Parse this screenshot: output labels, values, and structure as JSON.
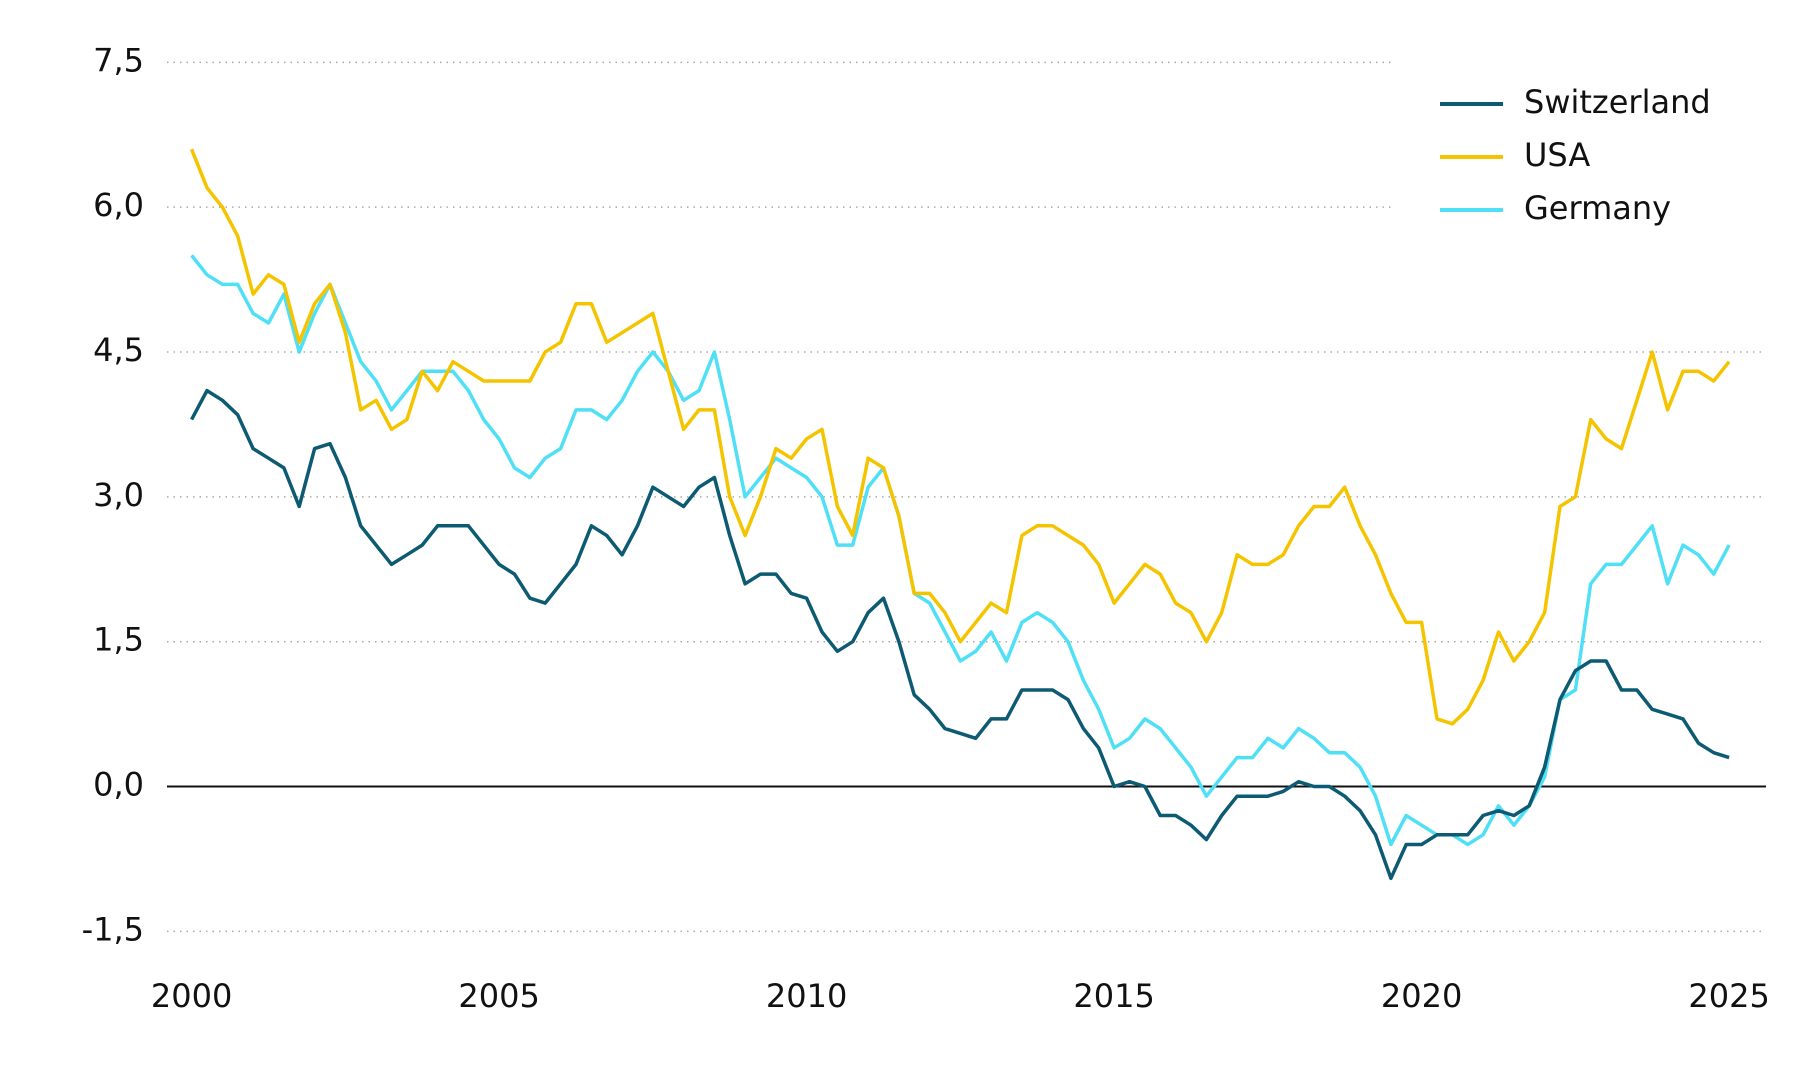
{
  "chart_data": {
    "type": "line",
    "x": [
      2000,
      2000.25,
      2000.5,
      2000.75,
      2001,
      2001.25,
      2001.5,
      2001.75,
      2002,
      2002.25,
      2002.5,
      2002.75,
      2003,
      2003.25,
      2003.5,
      2003.75,
      2004,
      2004.25,
      2004.5,
      2004.75,
      2005,
      2005.25,
      2005.5,
      2005.75,
      2006,
      2006.25,
      2006.5,
      2006.75,
      2007,
      2007.25,
      2007.5,
      2007.75,
      2008,
      2008.25,
      2008.5,
      2008.75,
      2009,
      2009.25,
      2009.5,
      2009.75,
      2010,
      2010.25,
      2010.5,
      2010.75,
      2011,
      2011.25,
      2011.5,
      2011.75,
      2012,
      2012.25,
      2012.5,
      2012.75,
      2013,
      2013.25,
      2013.5,
      2013.75,
      2014,
      2014.25,
      2014.5,
      2014.75,
      2015,
      2015.25,
      2015.5,
      2015.75,
      2016,
      2016.25,
      2016.5,
      2016.75,
      2017,
      2017.25,
      2017.5,
      2017.75,
      2018,
      2018.25,
      2018.5,
      2018.75,
      2019,
      2019.25,
      2019.5,
      2019.75,
      2020,
      2020.25,
      2020.5,
      2020.75,
      2021,
      2021.25,
      2021.5,
      2021.75,
      2022,
      2022.25,
      2022.5,
      2022.75,
      2023,
      2023.25,
      2023.5,
      2023.75,
      2024,
      2024.25,
      2024.5,
      2024.75,
      2025
    ],
    "series": [
      {
        "name": "Switzerland",
        "color": "#0d5a73",
        "values": [
          3.8,
          4.1,
          4.0,
          3.85,
          3.5,
          3.4,
          3.3,
          2.9,
          3.5,
          3.55,
          3.2,
          2.7,
          2.5,
          2.3,
          2.4,
          2.5,
          2.7,
          2.7,
          2.7,
          2.5,
          2.3,
          2.2,
          1.95,
          1.9,
          2.1,
          2.3,
          2.7,
          2.6,
          2.4,
          2.7,
          3.1,
          3.0,
          2.9,
          3.1,
          3.2,
          2.6,
          2.1,
          2.2,
          2.2,
          2.0,
          1.95,
          1.6,
          1.4,
          1.5,
          1.8,
          1.95,
          1.5,
          0.95,
          0.8,
          0.6,
          0.55,
          0.5,
          0.7,
          0.7,
          1.0,
          1.0,
          1.0,
          0.9,
          0.6,
          0.4,
          0.0,
          0.05,
          0.0,
          -0.3,
          -0.3,
          -0.4,
          -0.55,
          -0.3,
          -0.1,
          -0.1,
          -0.1,
          -0.05,
          0.05,
          0.0,
          0.0,
          -0.1,
          -0.25,
          -0.5,
          -0.95,
          -0.6,
          -0.6,
          -0.5,
          -0.5,
          -0.5,
          -0.3,
          -0.25,
          -0.3,
          -0.2,
          0.2,
          0.9,
          1.2,
          1.3,
          1.3,
          1.0,
          1.0,
          0.8,
          0.75,
          0.7,
          0.45,
          0.35,
          0.3
        ]
      },
      {
        "name": "USA",
        "color": "#f5c400",
        "values": [
          6.6,
          6.2,
          6.0,
          5.7,
          5.1,
          5.3,
          5.2,
          4.6,
          5.0,
          5.2,
          4.7,
          3.9,
          4.0,
          3.7,
          3.8,
          4.3,
          4.1,
          4.4,
          4.3,
          4.2,
          4.2,
          4.2,
          4.2,
          4.5,
          4.6,
          5.0,
          5.0,
          4.6,
          4.7,
          4.8,
          4.9,
          4.3,
          3.7,
          3.9,
          3.9,
          3.0,
          2.6,
          3.0,
          3.5,
          3.4,
          3.6,
          3.7,
          2.9,
          2.6,
          3.4,
          3.3,
          2.8,
          2.0,
          2.0,
          1.8,
          1.5,
          1.7,
          1.9,
          1.8,
          2.6,
          2.7,
          2.7,
          2.6,
          2.5,
          2.3,
          1.9,
          2.1,
          2.3,
          2.2,
          1.9,
          1.8,
          1.5,
          1.8,
          2.4,
          2.3,
          2.3,
          2.4,
          2.7,
          2.9,
          2.9,
          3.1,
          2.7,
          2.4,
          2.0,
          1.7,
          1.7,
          0.7,
          0.65,
          0.8,
          1.1,
          1.6,
          1.3,
          1.5,
          1.8,
          2.9,
          3.0,
          3.8,
          3.6,
          3.5,
          4.0,
          4.5,
          3.9,
          4.3,
          4.3,
          4.2,
          4.4
        ]
      },
      {
        "name": "Germany",
        "color": "#4fe0f5",
        "values": [
          5.5,
          5.3,
          5.2,
          5.2,
          4.9,
          4.8,
          5.1,
          4.5,
          4.9,
          5.2,
          4.8,
          4.4,
          4.2,
          3.9,
          4.1,
          4.3,
          4.3,
          4.3,
          4.1,
          3.8,
          3.6,
          3.3,
          3.2,
          3.4,
          3.5,
          3.9,
          3.9,
          3.8,
          4.0,
          4.3,
          4.5,
          4.3,
          4.0,
          4.1,
          4.5,
          3.8,
          3.0,
          3.2,
          3.4,
          3.3,
          3.2,
          3.0,
          2.5,
          2.5,
          3.1,
          3.3,
          2.8,
          2.0,
          1.9,
          1.6,
          1.3,
          1.4,
          1.6,
          1.3,
          1.7,
          1.8,
          1.7,
          1.5,
          1.1,
          0.8,
          0.4,
          0.5,
          0.7,
          0.6,
          0.4,
          0.2,
          -0.1,
          0.1,
          0.3,
          0.3,
          0.5,
          0.4,
          0.6,
          0.5,
          0.35,
          0.35,
          0.2,
          -0.1,
          -0.6,
          -0.3,
          -0.4,
          -0.5,
          -0.5,
          -0.6,
          -0.5,
          -0.2,
          -0.4,
          -0.2,
          0.1,
          0.9,
          1.0,
          2.1,
          2.3,
          2.3,
          2.5,
          2.7,
          2.1,
          2.5,
          2.4,
          2.2,
          2.5
        ]
      }
    ],
    "xlim": [
      1999.6,
      2025.6
    ],
    "xticks": [
      2000,
      2005,
      2010,
      2015,
      2020,
      2025
    ],
    "ylim": [
      -1.9,
      7.7
    ],
    "yticks": [
      {
        "value": -1.5,
        "label": "-1,5"
      },
      {
        "value": 0,
        "label": "0,0"
      },
      {
        "value": 1.5,
        "label": "1,5"
      },
      {
        "value": 3,
        "label": "3,0"
      },
      {
        "value": 4.5,
        "label": "4,5"
      },
      {
        "value": 6,
        "label": "6,0"
      },
      {
        "value": 7.5,
        "label": "7,5"
      }
    ],
    "grid": true,
    "legend": "top-right"
  }
}
